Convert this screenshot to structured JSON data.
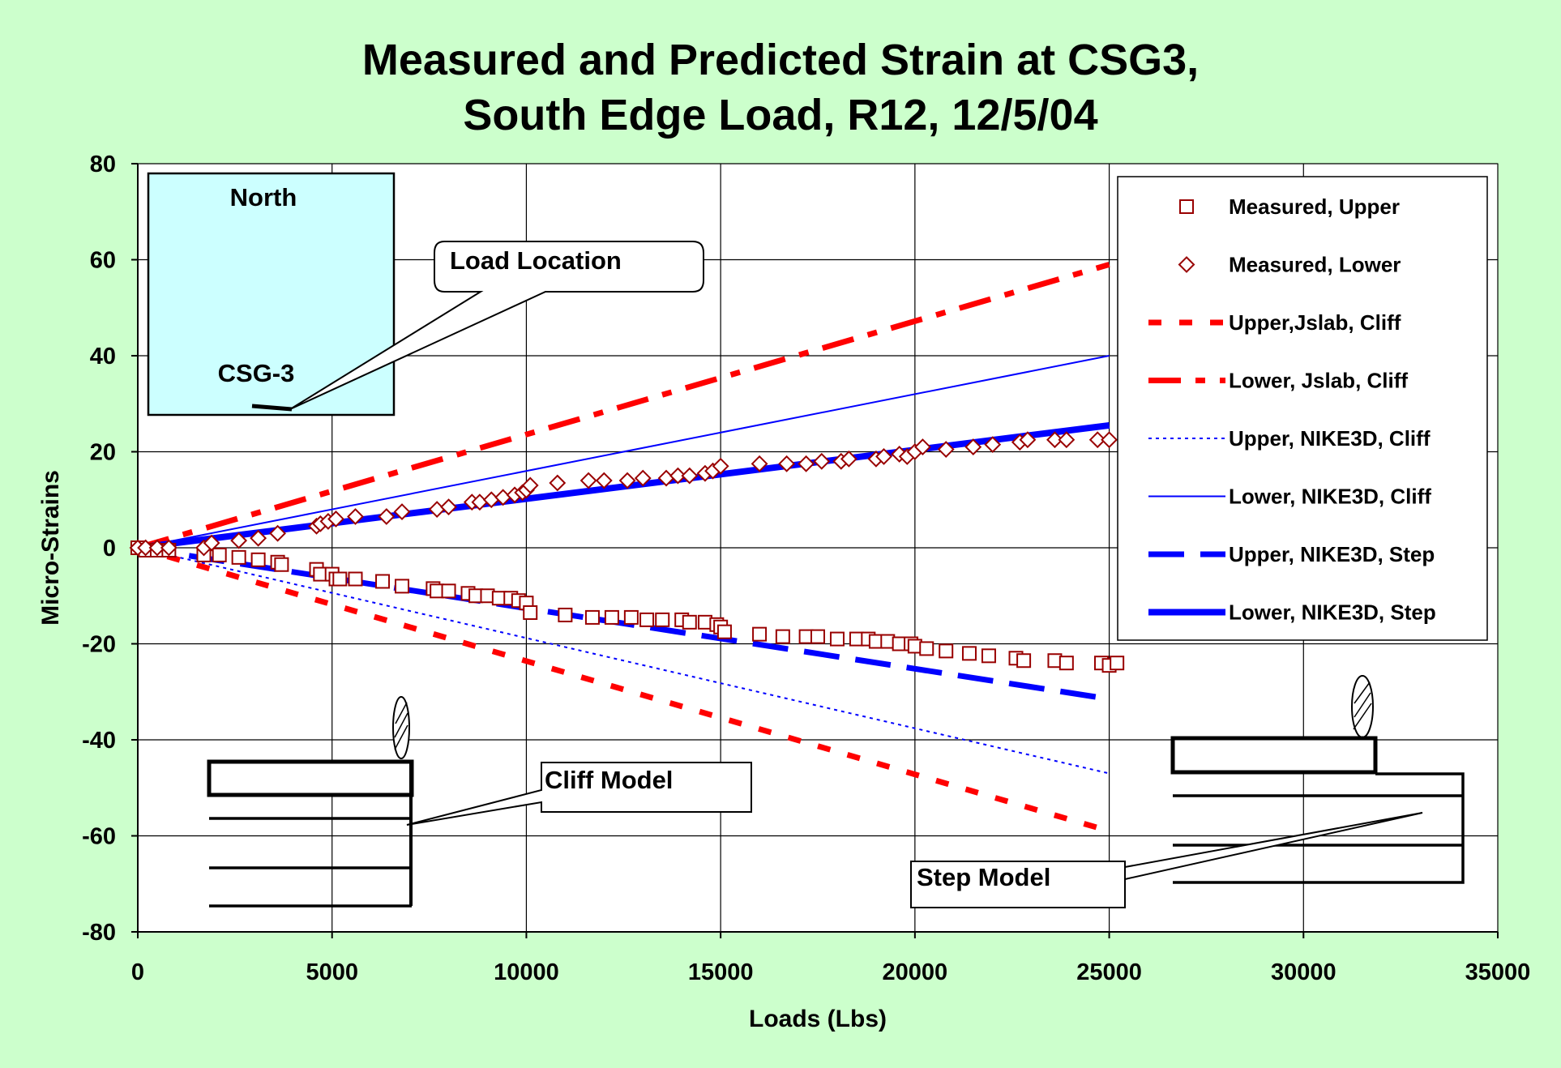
{
  "chart_data": {
    "type": "scatter",
    "title_lines": [
      "Measured and Predicted Strain at CSG3,",
      "South Edge Load, R12, 12/5/04"
    ],
    "xlabel": "Loads (Lbs)",
    "ylabel": "Micro-Strains",
    "xlim": [
      0,
      35000
    ],
    "ylim": [
      -80,
      80
    ],
    "x_ticks": [
      0,
      5000,
      10000,
      15000,
      20000,
      25000,
      30000,
      35000
    ],
    "y_ticks": [
      80,
      60,
      40,
      20,
      0,
      -20,
      -40,
      -60,
      -80
    ],
    "x_tick_labels": [
      "0",
      "5000",
      "10000",
      "15000",
      "20000",
      "25000",
      "30000",
      "35000"
    ],
    "y_tick_labels": [
      "80",
      "60",
      "40",
      "20",
      "0",
      "-20",
      "-40",
      "-60",
      "-80"
    ],
    "grid": "horizontal and vertical major gridlines",
    "legend_position": "right",
    "series": [
      {
        "name": "Measured, Upper",
        "kind": "marker",
        "marker": "square",
        "color": "#990000",
        "x": [
          0,
          200,
          500,
          800,
          1700,
          2100,
          2600,
          3100,
          3600,
          3700,
          4600,
          4700,
          5000,
          5100,
          5200,
          5600,
          6300,
          6800,
          7600,
          7700,
          8000,
          8500,
          8700,
          9000,
          9300,
          9600,
          9800,
          10000,
          10100,
          11000,
          11700,
          12200,
          12700,
          13100,
          13500,
          14000,
          14200,
          14600,
          14900,
          15000,
          15100,
          16000,
          16600,
          17200,
          17500,
          18000,
          18500,
          18800,
          19000,
          19300,
          19600,
          19900,
          20000,
          20300,
          20800,
          21400,
          21900,
          22600,
          22800,
          23600,
          23900,
          24800,
          25000,
          25200
        ],
        "y": [
          0,
          -0.5,
          -0.5,
          -0.5,
          -1.5,
          -1.5,
          -2,
          -2.5,
          -3,
          -3.5,
          -4.5,
          -5.5,
          -5.5,
          -6.5,
          -6.5,
          -6.5,
          -7,
          -8,
          -8.5,
          -9,
          -9,
          -9.5,
          -10,
          -10,
          -10.5,
          -10.5,
          -11,
          -11.5,
          -13.5,
          -14,
          -14.5,
          -14.5,
          -14.5,
          -15,
          -15,
          -15,
          -15.5,
          -15.5,
          -16,
          -16.5,
          -17.5,
          -18,
          -18.5,
          -18.5,
          -18.5,
          -19,
          -19,
          -19,
          -19.5,
          -19.5,
          -20,
          -20,
          -20.5,
          -21,
          -21.5,
          -22,
          -22.5,
          -23,
          -23.5,
          -23.5,
          -24,
          -24,
          -24.5,
          -24
        ]
      },
      {
        "name": "Measured, Lower",
        "kind": "marker",
        "marker": "diamond",
        "color": "#990000",
        "x": [
          0,
          200,
          500,
          800,
          1700,
          1900,
          2600,
          3100,
          3600,
          4600,
          4700,
          4900,
          5100,
          5600,
          6400,
          6800,
          7700,
          8000,
          8600,
          8800,
          9100,
          9400,
          9700,
          9900,
          10000,
          10100,
          10800,
          11600,
          12000,
          12600,
          13000,
          13600,
          13900,
          14200,
          14600,
          14800,
          15000,
          16000,
          16700,
          17200,
          17600,
          18100,
          18300,
          19000,
          19200,
          19600,
          19800,
          20000,
          20200,
          20800,
          21500,
          22000,
          22700,
          22900,
          23600,
          23900,
          24700,
          25000
        ],
        "y": [
          0,
          0,
          0,
          0,
          0,
          1,
          1.5,
          2,
          3,
          4.5,
          5,
          5.5,
          6,
          6.5,
          6.5,
          7.5,
          8,
          8.5,
          9.5,
          9.5,
          10,
          10.5,
          11,
          11.5,
          12,
          13,
          13.5,
          14,
          14,
          14,
          14.5,
          14.5,
          15,
          15,
          15.5,
          16,
          17,
          17.5,
          17.5,
          17.5,
          18,
          18,
          18.5,
          18.5,
          19,
          19.5,
          19,
          20,
          21,
          20.5,
          21,
          21.5,
          22,
          22.5,
          22.5,
          22.5,
          22.5,
          22.5
        ]
      },
      {
        "name": "Upper,Jslab, Cliff",
        "kind": "line",
        "style": "dash",
        "color": "#ff0000",
        "x": [
          0,
          25000
        ],
        "y": [
          0,
          -59
        ]
      },
      {
        "name": "Lower, Jslab, Cliff",
        "kind": "line",
        "style": "dashdot",
        "color": "#ff0000",
        "x": [
          0,
          25000
        ],
        "y": [
          0,
          59
        ]
      },
      {
        "name": "Upper, NIKE3D, Cliff",
        "kind": "line",
        "style": "dot",
        "color": "#0000ff",
        "x": [
          0,
          25000
        ],
        "y": [
          0,
          -47
        ]
      },
      {
        "name": "Lower, NIKE3D, Cliff",
        "kind": "line",
        "style": "solid-thin",
        "color": "#0000ff",
        "x": [
          0,
          25000
        ],
        "y": [
          0,
          40
        ]
      },
      {
        "name": "Upper, NIKE3D, Step",
        "kind": "line",
        "style": "longdash",
        "color": "#0000ff",
        "x": [
          0,
          25000
        ],
        "y": [
          0,
          -31.5
        ]
      },
      {
        "name": "Lower, NIKE3D, Step",
        "kind": "line",
        "style": "solid-thick",
        "color": "#0000ff",
        "x": [
          0,
          25000
        ],
        "y": [
          0,
          25.5
        ]
      }
    ],
    "annotations": {
      "north": "North",
      "load_location": "Load Location",
      "csg": "CSG-3",
      "cliff_model": "Cliff Model",
      "step_model": "Step Model"
    }
  }
}
